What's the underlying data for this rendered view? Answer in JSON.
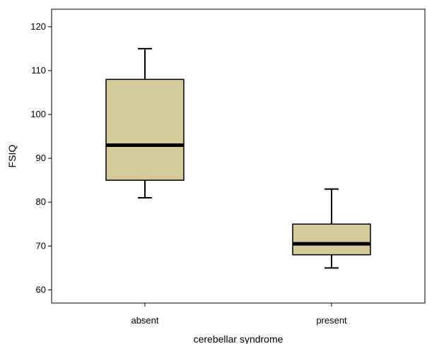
{
  "chart_data": {
    "type": "box",
    "title": "",
    "xlabel": "cerebellar syndrome",
    "ylabel": "FSIQ",
    "ylim": [
      57,
      124
    ],
    "yticks": [
      60,
      70,
      80,
      90,
      100,
      110,
      120
    ],
    "categories": [
      "absent",
      "present"
    ],
    "boxes": [
      {
        "category": "absent",
        "min": 81,
        "q1": 85,
        "median": 93,
        "q3": 108,
        "max": 115
      },
      {
        "category": "present",
        "min": 65,
        "q1": 68,
        "median": 70.5,
        "q3": 75,
        "max": 83
      }
    ],
    "grid": false,
    "box_fill": "#d4ca9a",
    "line_color": "#000000",
    "frame_color": "#000000"
  }
}
